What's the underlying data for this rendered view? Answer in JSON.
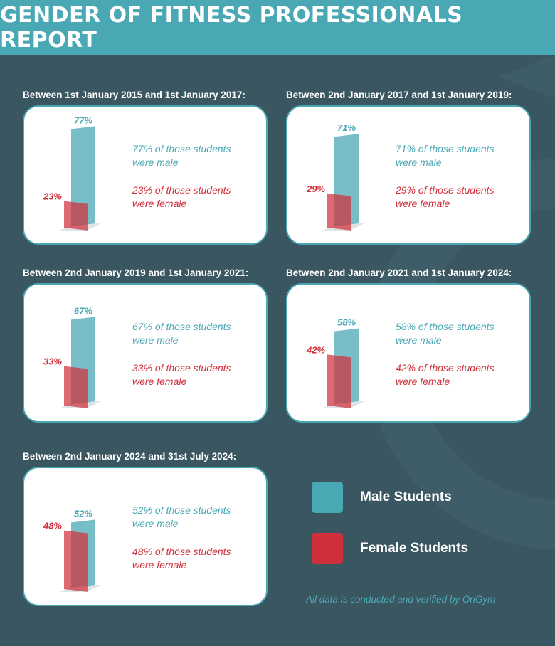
{
  "header": {
    "title": "GENDER OF FITNESS PROFESSIONALS REPORT"
  },
  "chart_data": [
    {
      "type": "bar",
      "title": "Between 1st January 2015 and 1st January 2017:",
      "categories": [
        "Male Students",
        "Female Students"
      ],
      "values": [
        77,
        23
      ],
      "unit": "%",
      "male_label": "77%",
      "female_label": "23%",
      "male_text_1": "77% of those students",
      "male_text_2": "were male",
      "female_text_1": "23% of those students",
      "female_text_2": "were female"
    },
    {
      "type": "bar",
      "title": "Between 2nd January 2017 and 1st January 2019:",
      "categories": [
        "Male Students",
        "Female Students"
      ],
      "values": [
        71,
        29
      ],
      "unit": "%",
      "male_label": "71%",
      "female_label": "29%",
      "male_text_1": "71% of those students",
      "male_text_2": "were male",
      "female_text_1": "29% of those students",
      "female_text_2": "were female"
    },
    {
      "type": "bar",
      "title": "Between 2nd January 2019 and 1st January 2021:",
      "categories": [
        "Male Students",
        "Female Students"
      ],
      "values": [
        67,
        33
      ],
      "unit": "%",
      "male_label": "67%",
      "female_label": "33%",
      "male_text_1": "67% of those students",
      "male_text_2": "were male",
      "female_text_1": "33% of those students",
      "female_text_2": "were female"
    },
    {
      "type": "bar",
      "title": "Between 2nd January 2021 and 1st January 2024:",
      "categories": [
        "Male Students",
        "Female Students"
      ],
      "values": [
        58,
        42
      ],
      "unit": "%",
      "male_label": "58%",
      "female_label": "42%",
      "male_text_1": "58% of those students",
      "male_text_2": "were male",
      "female_text_1": "42% of those students",
      "female_text_2": "were female"
    },
    {
      "type": "bar",
      "title": "Between 2nd January 2024 and 31st July 2024:",
      "categories": [
        "Male Students",
        "Female Students"
      ],
      "values": [
        52,
        48
      ],
      "unit": "%",
      "male_label": "52%",
      "female_label": "48%",
      "male_text_1": "52% of those students",
      "male_text_2": "were male",
      "female_text_1": "48% of those students",
      "female_text_2": "were female"
    }
  ],
  "legend": {
    "placement": "bottom-right",
    "items": [
      {
        "label": "Male Students",
        "color": "#4aa8b5"
      },
      {
        "label": "Female Students",
        "color": "#d0303b"
      }
    ]
  },
  "footnote": "All data is conducted and verified by OriGym",
  "colors": {
    "male": "#4aa8b5",
    "female": "#d0303b",
    "background": "#3a5661",
    "header": "#4aa8b5"
  }
}
